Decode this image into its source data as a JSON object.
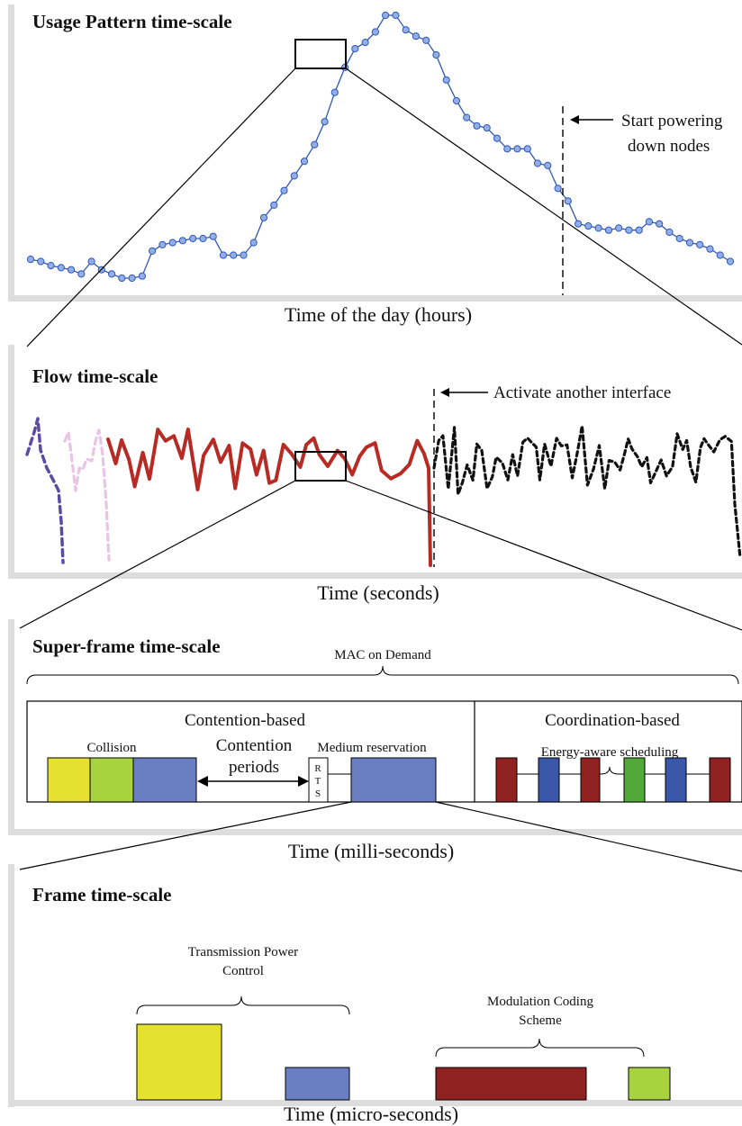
{
  "panels": {
    "usage": {
      "title": "Usage Pattern time-scale",
      "xlabel": "Time of the day (hours)",
      "annotation": [
        "Start powering",
        "down nodes"
      ]
    },
    "flow": {
      "title": "Flow time-scale",
      "xlabel": "Time (seconds)",
      "annotation": "Activate another interface"
    },
    "superframe": {
      "title": "Super-frame time-scale",
      "xlabel": "Time (milli-seconds)",
      "mac_label": "MAC on Demand",
      "contention_label": "Contention-based",
      "coordination_label": "Coordination-based",
      "collision_label": "Collision",
      "contention_periods": [
        "Contention",
        "periods"
      ],
      "medium_reservation": "Medium reservation",
      "rts_letters": [
        "R",
        "T",
        "S"
      ],
      "energy_scheduling": "Energy-aware scheduling"
    },
    "frame": {
      "title": "Frame time-scale",
      "xlabel": "Time (micro-seconds)",
      "tpc_label": [
        "Transmission Power",
        "Control"
      ],
      "mcs_label": [
        "Modulation Coding",
        "Scheme"
      ]
    }
  },
  "colors": {
    "yellow": "#e6e02e",
    "light_green": "#a9d23f",
    "blue": "#6a7fc1",
    "dark_red": "#8f2121",
    "dark_blue": "#3b57a7",
    "green": "#52a83a",
    "line_blue": "#2e58b8",
    "marker_fill": "#93aee6",
    "flow_red": "#b82b24",
    "flow_purple": "#5b4ba3",
    "flow_pink": "#e9c4e6"
  },
  "usage_series": {
    "values": [
      100,
      99,
      97,
      96,
      95,
      93,
      99,
      95,
      93,
      91,
      91,
      92,
      104,
      107,
      108,
      109,
      110,
      110,
      111,
      102,
      102,
      102,
      108,
      120,
      126,
      133,
      140,
      147,
      155,
      166,
      180,
      192,
      201,
      204,
      209,
      217,
      217,
      210,
      207,
      205,
      198,
      186,
      176,
      168,
      164,
      163,
      158,
      153,
      153,
      153,
      146,
      145,
      134,
      128,
      117,
      116,
      115,
      114,
      115,
      114,
      114,
      118,
      117,
      113,
      110,
      108,
      107,
      105,
      102,
      99
    ]
  }
}
